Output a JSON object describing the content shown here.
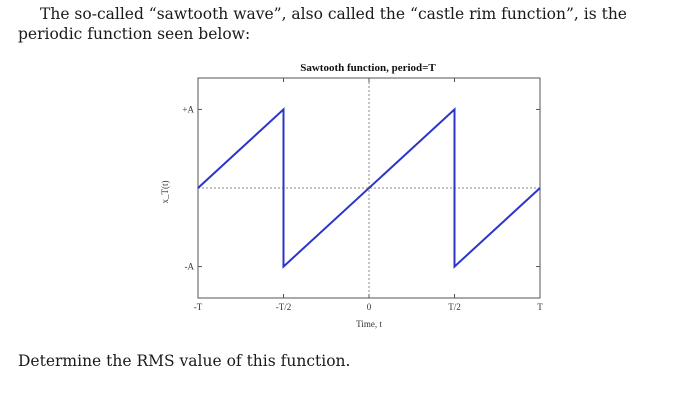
{
  "intro_text": "The so-called “sawtooth wave”, also called the “castle rim function”, is the periodic function seen below:",
  "question_text": "Determine the RMS value of this function.",
  "chart_data": {
    "type": "line",
    "title": "Sawtooth function, period=T",
    "xlabel": "Time, t",
    "ylabel": "x_T(t)",
    "x_ticks": [
      "-T",
      "-T/2",
      "0",
      "T/2",
      "T"
    ],
    "y_ticks": [
      "+A",
      "-A"
    ],
    "xlim": [
      -1,
      1
    ],
    "ylim": [
      -1.4,
      1.4
    ],
    "units_note": "x in units of T, y in units of A",
    "series": [
      {
        "x": [
          -1,
          -0.5,
          -0.5,
          0.5,
          0.5,
          1
        ],
        "y": [
          0,
          1,
          -1,
          1,
          -1,
          0
        ]
      }
    ],
    "grid": "dotted lines at x=0 and y=0",
    "line_color": "#2b35c9"
  }
}
